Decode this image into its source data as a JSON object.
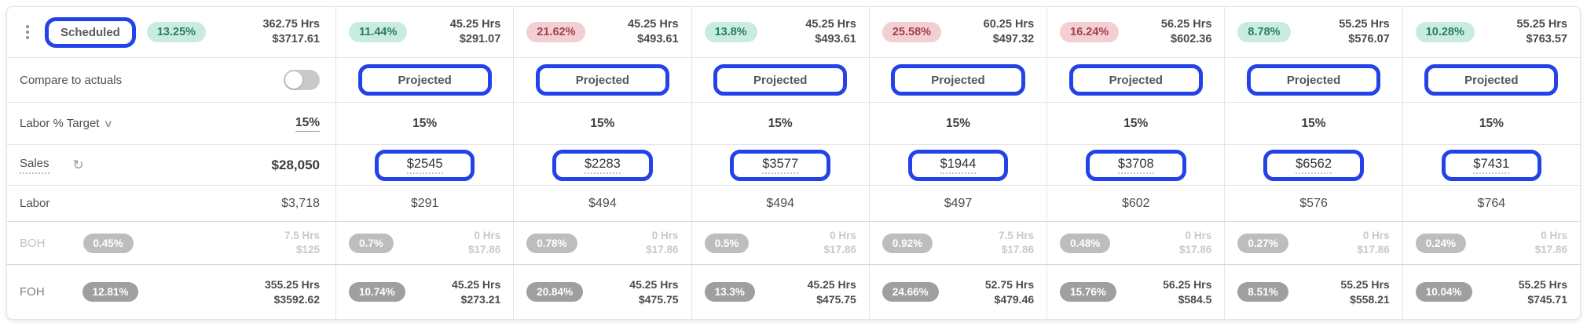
{
  "colors": {
    "annotation_blue": "#2342e8",
    "teal_badge_bg": "#c9ece2",
    "teal_badge_text": "#2b7c65",
    "pink_badge_bg": "#f3cfd4",
    "pink_badge_text": "#a04048",
    "gray_badge_bg": "#bdbdbd",
    "dark_gray_badge_bg": "#9f9f9f"
  },
  "left": {
    "scheduled_label": "Scheduled",
    "summary_badge": "13.25%",
    "summary_tone": "teal",
    "summary_hours": "362.75 Hrs",
    "summary_cost": "$3717.61",
    "compare_label": "Compare to actuals",
    "compare_toggle_state": "off",
    "labor_target_label": "Labor % Target",
    "labor_target_value": "15%",
    "sales_label": "Sales",
    "sales_total": "$28,050",
    "labor_label": "Labor",
    "labor_total": "$3,718",
    "boh_label": "BOH",
    "boh_badge": "0.45%",
    "boh_hours": "7.5 Hrs",
    "boh_cost": "$125",
    "foh_label": "FOH",
    "foh_badge": "12.81%",
    "foh_hours": "355.25 Hrs",
    "foh_cost": "$3592.62"
  },
  "columns": [
    {
      "badge": "11.44%",
      "tone": "teal",
      "hours": "45.25 Hrs",
      "cost": "$291.07",
      "projected": "Projected",
      "target": "15%",
      "sales": "$2545",
      "labor": "$291",
      "boh_badge": "0.7%",
      "boh_hours": "0 Hrs",
      "boh_cost": "$17.86",
      "foh_badge": "10.74%",
      "foh_hours": "45.25 Hrs",
      "foh_cost": "$273.21"
    },
    {
      "badge": "21.62%",
      "tone": "pink",
      "hours": "45.25 Hrs",
      "cost": "$493.61",
      "projected": "Projected",
      "target": "15%",
      "sales": "$2283",
      "labor": "$494",
      "boh_badge": "0.78%",
      "boh_hours": "0 Hrs",
      "boh_cost": "$17.86",
      "foh_badge": "20.84%",
      "foh_hours": "45.25 Hrs",
      "foh_cost": "$475.75"
    },
    {
      "badge": "13.8%",
      "tone": "teal",
      "hours": "45.25 Hrs",
      "cost": "$493.61",
      "projected": "Projected",
      "target": "15%",
      "sales": "$3577",
      "labor": "$494",
      "boh_badge": "0.5%",
      "boh_hours": "0 Hrs",
      "boh_cost": "$17.86",
      "foh_badge": "13.3%",
      "foh_hours": "45.25 Hrs",
      "foh_cost": "$475.75"
    },
    {
      "badge": "25.58%",
      "tone": "pink",
      "hours": "60.25 Hrs",
      "cost": "$497.32",
      "projected": "Projected",
      "target": "15%",
      "sales": "$1944",
      "labor": "$497",
      "boh_badge": "0.92%",
      "boh_hours": "7.5 Hrs",
      "boh_cost": "$17.86",
      "foh_badge": "24.66%",
      "foh_hours": "52.75 Hrs",
      "foh_cost": "$479.46"
    },
    {
      "badge": "16.24%",
      "tone": "pink",
      "hours": "56.25 Hrs",
      "cost": "$602.36",
      "projected": "Projected",
      "target": "15%",
      "sales": "$3708",
      "labor": "$602",
      "boh_badge": "0.48%",
      "boh_hours": "0 Hrs",
      "boh_cost": "$17.86",
      "foh_badge": "15.76%",
      "foh_hours": "56.25 Hrs",
      "foh_cost": "$584.5"
    },
    {
      "badge": "8.78%",
      "tone": "teal",
      "hours": "55.25 Hrs",
      "cost": "$576.07",
      "projected": "Projected",
      "target": "15%",
      "sales": "$6562",
      "labor": "$576",
      "boh_badge": "0.27%",
      "boh_hours": "0 Hrs",
      "boh_cost": "$17.86",
      "foh_badge": "8.51%",
      "foh_hours": "55.25 Hrs",
      "foh_cost": "$558.21"
    },
    {
      "badge": "10.28%",
      "tone": "teal",
      "hours": "55.25 Hrs",
      "cost": "$763.57",
      "projected": "Projected",
      "target": "15%",
      "sales": "$7431",
      "labor": "$764",
      "boh_badge": "0.24%",
      "boh_hours": "0 Hrs",
      "boh_cost": "$17.86",
      "foh_badge": "10.04%",
      "foh_hours": "55.25 Hrs",
      "foh_cost": "$745.71"
    }
  ]
}
